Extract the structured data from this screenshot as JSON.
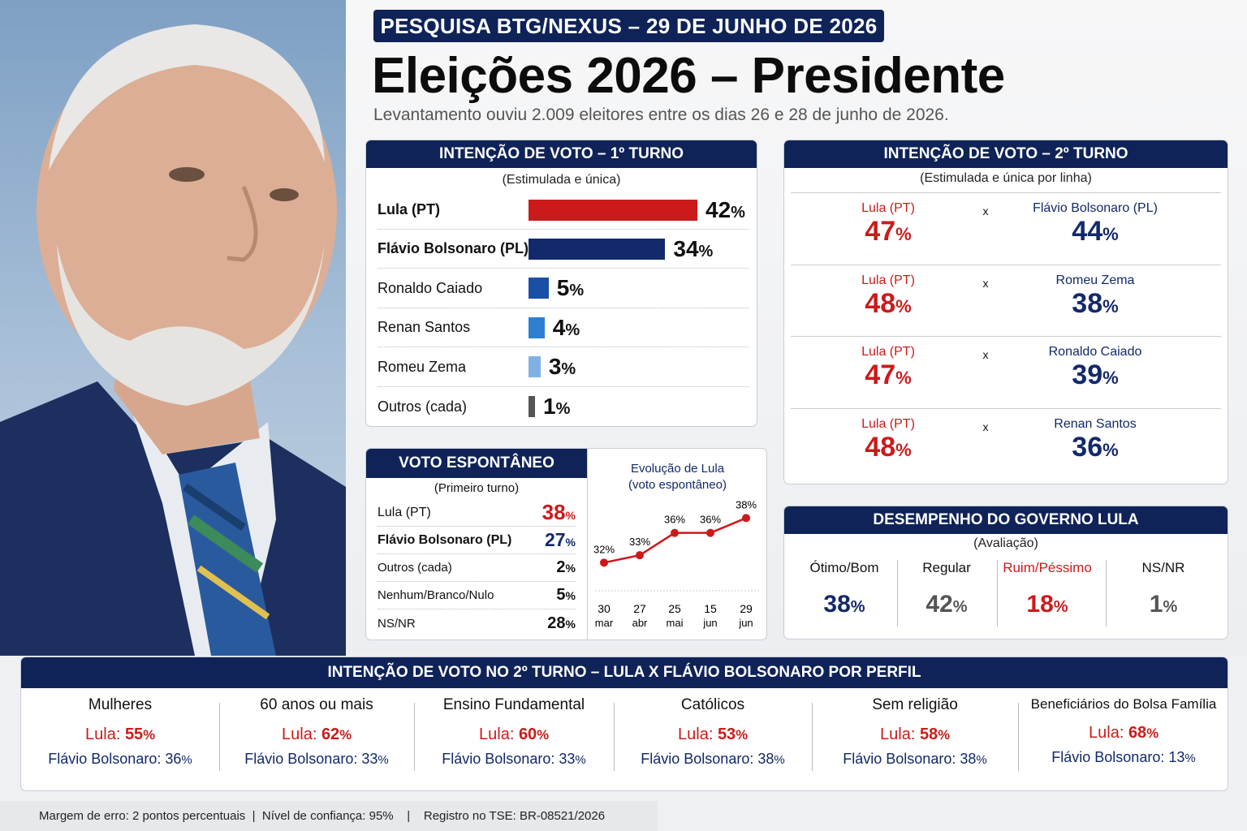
{
  "header": {
    "badge": "PESQUISA BTG/NEXUS – 29 DE JUNHO DE 2026",
    "title": "Eleições 2026 – Presidente",
    "subtitle": "Levantamento ouviu 2.009 eleitores entre os dias 26 e 28 de junho de 2026."
  },
  "first_round": {
    "title": "INTENÇÃO DE VOTO – 1º TURNO",
    "note": "(Estimulada e única)",
    "items": [
      {
        "name": "Lula (PT)",
        "value": 42,
        "pct": "42",
        "color": "#cc1a1a"
      },
      {
        "name": "Flávio Bolsonaro (PL)",
        "value": 34,
        "pct": "34",
        "color": "#12296b"
      },
      {
        "name": "Ronaldo Caiado",
        "value": 5,
        "pct": "5",
        "color": "#1a4fa8"
      },
      {
        "name": "Renan Santos",
        "value": 4,
        "pct": "4",
        "color": "#2f7fd0"
      },
      {
        "name": "Romeu Zema",
        "value": 3,
        "pct": "3",
        "color": "#7fb2e3"
      },
      {
        "name": "Outros (cada)",
        "value": 1,
        "pct": "1",
        "color": "#555555"
      }
    ]
  },
  "second_round": {
    "title": "INTENÇÃO DE VOTO – 2º TURNO",
    "note": "(Estimulada e única por linha)",
    "vs": "x",
    "matchups": [
      {
        "a": "Lula (PT)",
        "a_pct": "47",
        "b": "Flávio Bolsonaro (PL)",
        "b_pct": "44"
      },
      {
        "a": "Lula (PT)",
        "a_pct": "48",
        "b": "Romeu Zema",
        "b_pct": "38"
      },
      {
        "a": "Lula (PT)",
        "a_pct": "47",
        "b": "Ronaldo Caiado",
        "b_pct": "39"
      },
      {
        "a": "Lula (PT)",
        "a_pct": "48",
        "b": "Renan Santos",
        "b_pct": "36"
      }
    ]
  },
  "spontaneous": {
    "title": "VOTO ESPONTÂNEO",
    "note": "(Primeiro turno)",
    "items": [
      {
        "name": "Lula (PT)",
        "pct": "38"
      },
      {
        "name": "Flávio Bolsonaro (PL)",
        "pct": "27"
      },
      {
        "name": "Outros (cada)",
        "pct": "2"
      },
      {
        "name": "Nenhum/Branco/Nulo",
        "pct": "5"
      },
      {
        "name": "NS/NR",
        "pct": "28"
      }
    ]
  },
  "chart_data": {
    "type": "line",
    "title": "Evolução de Lula (voto espontâneo)",
    "title_line1": "Evolução de Lula",
    "title_line2": "(voto espontâneo)",
    "x": [
      "30 mar",
      "27 abr",
      "25 mai",
      "15 jun",
      "29 jun"
    ],
    "x_day": [
      "30",
      "27",
      "25",
      "15",
      "29"
    ],
    "x_month": [
      "mar",
      "abr",
      "mai",
      "jun",
      "jun"
    ],
    "series": [
      {
        "values": [
          32,
          33,
          36,
          36,
          38
        ],
        "color": "#cc1a1a"
      }
    ],
    "labels": [
      "32%",
      "33%",
      "36%",
      "36%",
      "38%"
    ],
    "ylim": [
      28,
      40
    ],
    "grid": false
  },
  "government": {
    "title": "DESEMPENHO DO GOVERNO LULA",
    "note": "(Avaliação)",
    "items": [
      {
        "label": "Ótimo/Bom",
        "pct": "38",
        "color": "#12296b"
      },
      {
        "label": "Regular",
        "pct": "42",
        "color": "#555555"
      },
      {
        "label": "Ruim/Péssimo",
        "pct": "18",
        "color": "#cc1a1a"
      },
      {
        "label": "NS/NR",
        "pct": "1",
        "color": "#555555"
      }
    ]
  },
  "profile": {
    "title": "INTENÇÃO DE VOTO NO 2º TURNO – LULA X FLÁVIO BOLSONARO POR PERFIL",
    "a_label": "Lula:",
    "b_label": "Flávio Bolsonaro:",
    "groups": [
      {
        "group": "Mulheres",
        "a": "55",
        "b": "36"
      },
      {
        "group": "60 anos ou mais",
        "a": "62",
        "b": "33"
      },
      {
        "group": "Ensino Fundamental",
        "a": "60",
        "b": "33"
      },
      {
        "group": "Católicos",
        "a": "53",
        "b": "38"
      },
      {
        "group": "Sem religião",
        "a": "58",
        "b": "38"
      },
      {
        "group": "Beneficiários do Bolsa Família",
        "a": "68",
        "b": "13"
      }
    ]
  },
  "footer": {
    "text": "Margem de erro: 2 pontos percentuais  |  Nível de confiança: 95%    |    Registro no TSE: BR-08521/2026"
  },
  "pct_sign": "%"
}
